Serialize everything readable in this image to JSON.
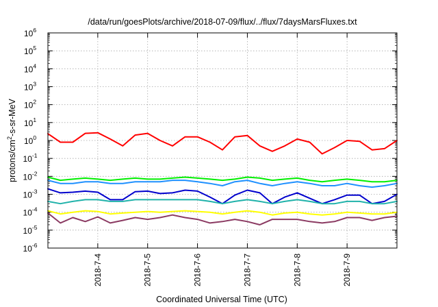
{
  "chart_data": {
    "type": "line",
    "title": "/data/run/goesPlots/archive/2018-07-09/flux/../flux/7daysMarsFluxes.txt",
    "xlabel": "Coordinated Universal Time (UTC)",
    "ylabel_parts": [
      "protons/cm",
      "2",
      "-s-sr-MeV"
    ],
    "y_scale": "log",
    "ylim_exp": [
      -6,
      6
    ],
    "y_tick_exponents": [
      -6,
      -5,
      -4,
      -3,
      -2,
      -1,
      0,
      1,
      2,
      3,
      4,
      5,
      6
    ],
    "xlim": [
      "2018-07-03 00:00",
      "2018-07-10 00:00"
    ],
    "x_ticks": [
      "2018-7-4",
      "2018-7-5",
      "2018-7-6",
      "2018-7-7",
      "2018-7-8",
      "2018-7-9"
    ],
    "grid": true,
    "x": [
      "2018-07-03 00:00",
      "2018-07-03 06:00",
      "2018-07-03 12:00",
      "2018-07-03 18:00",
      "2018-07-04 00:00",
      "2018-07-04 06:00",
      "2018-07-04 12:00",
      "2018-07-04 18:00",
      "2018-07-05 00:00",
      "2018-07-05 06:00",
      "2018-07-05 12:00",
      "2018-07-05 18:00",
      "2018-07-06 00:00",
      "2018-07-06 06:00",
      "2018-07-06 12:00",
      "2018-07-06 18:00",
      "2018-07-07 00:00",
      "2018-07-07 06:00",
      "2018-07-07 12:00",
      "2018-07-07 18:00",
      "2018-07-08 00:00",
      "2018-07-08 06:00",
      "2018-07-08 12:00",
      "2018-07-08 18:00",
      "2018-07-09 00:00",
      "2018-07-09 06:00",
      "2018-07-09 12:00",
      "2018-07-09 18:00",
      "2018-07-10 00:00"
    ],
    "series": [
      {
        "color": "#ff0000",
        "values": [
          2.4,
          0.8,
          0.8,
          2.5,
          2.7,
          1.2,
          0.5,
          2.0,
          2.5,
          1.0,
          0.5,
          1.6,
          1.6,
          0.8,
          0.3,
          1.6,
          1.9,
          0.5,
          0.25,
          0.5,
          1.2,
          0.8,
          0.18,
          0.4,
          1.0,
          0.9,
          0.3,
          0.35,
          1.0
        ]
      },
      {
        "color": "#00ee00",
        "values": [
          0.009,
          0.006,
          0.007,
          0.008,
          0.007,
          0.006,
          0.007,
          0.008,
          0.007,
          0.007,
          0.008,
          0.009,
          0.008,
          0.007,
          0.006,
          0.007,
          0.009,
          0.008,
          0.006,
          0.007,
          0.008,
          0.006,
          0.005,
          0.006,
          0.007,
          0.006,
          0.005,
          0.005,
          0.006
        ]
      },
      {
        "color": "#1e90ff",
        "values": [
          0.006,
          0.004,
          0.004,
          0.005,
          0.005,
          0.004,
          0.004,
          0.005,
          0.005,
          0.005,
          0.006,
          0.006,
          0.005,
          0.004,
          0.003,
          0.005,
          0.006,
          0.004,
          0.003,
          0.004,
          0.005,
          0.004,
          0.003,
          0.003,
          0.004,
          0.003,
          0.0025,
          0.003,
          0.004
        ]
      },
      {
        "color": "#0000cd",
        "values": [
          0.002,
          0.0012,
          0.0013,
          0.0015,
          0.0013,
          0.0005,
          0.0005,
          0.0014,
          0.0015,
          0.0011,
          0.0012,
          0.0017,
          0.0015,
          0.0007,
          0.0003,
          0.0009,
          0.0017,
          0.0012,
          0.0003,
          0.0007,
          0.0012,
          0.0006,
          0.0003,
          0.0005,
          0.0009,
          0.0009,
          0.0003,
          0.0004,
          0.001
        ]
      },
      {
        "color": "#20b2aa",
        "values": [
          0.0004,
          0.0003,
          0.0004,
          0.0005,
          0.0005,
          0.0004,
          0.0004,
          0.0005,
          0.0005,
          0.0005,
          0.0005,
          0.0005,
          0.0005,
          0.0004,
          0.0003,
          0.0004,
          0.0005,
          0.0004,
          0.0003,
          0.0004,
          0.0005,
          0.0004,
          0.0003,
          0.0003,
          0.0004,
          0.0004,
          0.0003,
          0.0003,
          0.0004
        ]
      },
      {
        "color": "#ffff00",
        "values": [
          0.00012,
          8e-05,
          0.0001,
          0.00012,
          0.00011,
          8e-05,
          9e-05,
          0.0001,
          0.00011,
          0.0001,
          0.00011,
          0.00012,
          0.00011,
          0.0001,
          8e-05,
          0.0001,
          0.00012,
          0.0001,
          7e-05,
          9e-05,
          0.0001,
          8e-05,
          7e-05,
          8e-05,
          0.0001,
          9e-05,
          8e-05,
          8e-05,
          0.0001
        ]
      },
      {
        "color": "#8b3a62",
        "values": [
          9e-05,
          2.5e-05,
          5e-05,
          3e-05,
          5.5e-05,
          2.5e-05,
          3.5e-05,
          5e-05,
          4e-05,
          5e-05,
          7e-05,
          5e-05,
          4e-05,
          2.5e-05,
          3e-05,
          4e-05,
          3e-05,
          2e-05,
          4e-05,
          4e-05,
          4e-05,
          3e-05,
          2.5e-05,
          3e-05,
          5e-05,
          5e-05,
          3.5e-05,
          5e-05,
          6e-05
        ]
      }
    ]
  }
}
